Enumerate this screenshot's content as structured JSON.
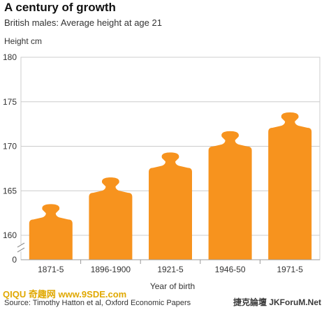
{
  "header": {
    "title": "A century of growth",
    "subtitle": "British males: Average height at age 21"
  },
  "footer": {
    "source": "Source: Timothy Hatton et al, Oxford Economic Papers"
  },
  "watermarks": {
    "left": "QIQU 奇趣网 www.9SDE.com",
    "right": "捷克論壇 JKForuM.Net"
  },
  "chart_data": {
    "type": "bar",
    "title": "A century of growth",
    "subtitle": "British males: Average height at age 21",
    "ylabel": "Height cm",
    "xlabel": "Year of birth",
    "categories": [
      "1871-5",
      "1896-1900",
      "1921-5",
      "1946-50",
      "1971-5"
    ],
    "values": [
      163.5,
      166.5,
      169.3,
      171.7,
      173.8
    ],
    "ylim": [
      160,
      180
    ],
    "y_ticks": [
      160,
      165,
      170,
      175,
      180
    ],
    "y_tick_labels": [
      "160",
      "165",
      "170",
      "175",
      "180"
    ],
    "y_axis_break_label": "0",
    "bar_shape": "human silhouette",
    "grid": true,
    "colors": {
      "bar": "#f7931e",
      "grid": "#cccccc",
      "plot_bg": "#ffffff"
    }
  }
}
